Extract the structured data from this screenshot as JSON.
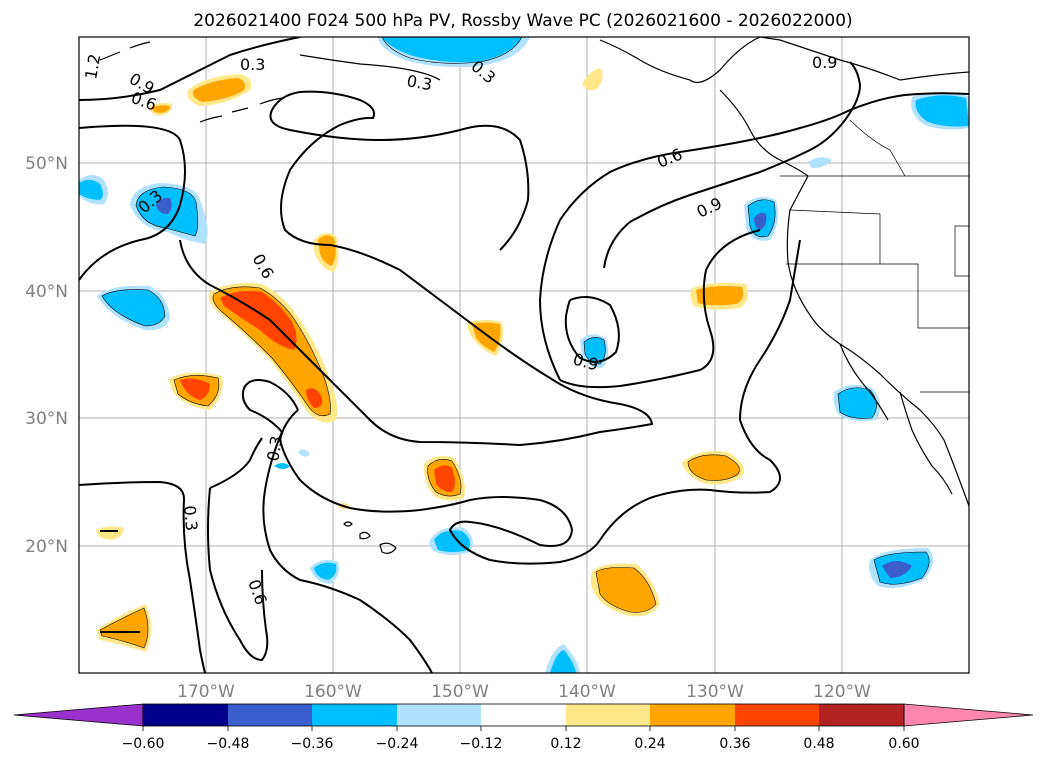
{
  "title": "2026021400 F024 500 hPa PV, Rossby Wave PC (2026021600 - 2026022000)",
  "lat_labels": [
    "50°N",
    "40°N",
    "30°N",
    "20°N"
  ],
  "lon_labels": [
    "170°W",
    "160°W",
    "150°W",
    "140°W",
    "130°W",
    "120°W"
  ],
  "contour_labels": [
    "1.2",
    "0.9",
    "0.6",
    "0.3",
    "0.3",
    "0.3",
    "0.9",
    "0.6",
    "0.9",
    "0.3",
    "0.6",
    "0.9",
    "0.3",
    "0.3",
    "0.6"
  ],
  "colorbar": {
    "ticks": [
      "−0.60",
      "−0.48",
      "−0.36",
      "−0.24",
      "−0.12",
      "0.12",
      "0.24",
      "0.36",
      "0.48",
      "0.60"
    ],
    "colors": {
      "under": "#9932cc",
      "neg060": "#00008b",
      "neg048": "#3a5fcd",
      "neg036": "#00bfff",
      "neg024": "#b0e2ff",
      "neg012": "#ffffff",
      "pos012": "#ffe88a",
      "pos024": "#ffa500",
      "pos036": "#ff4500",
      "pos048": "#b22222",
      "over": "#ff86ae"
    }
  }
}
